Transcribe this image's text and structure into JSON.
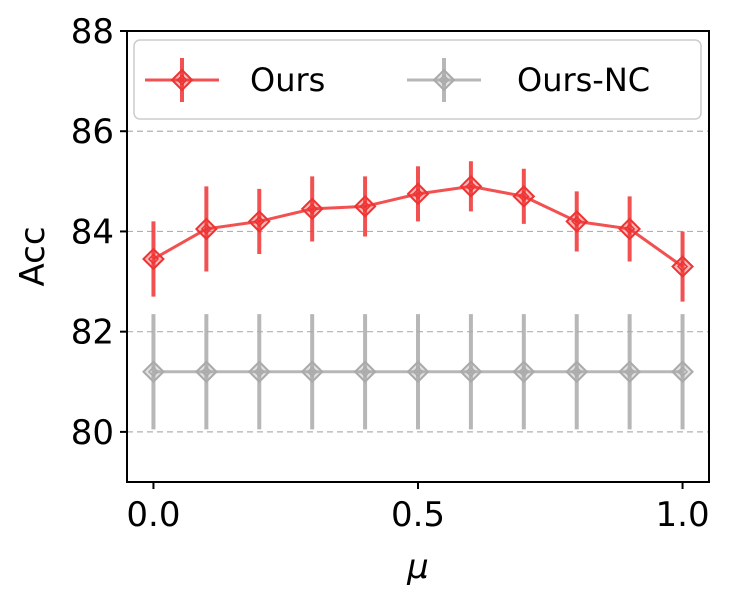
{
  "chart_data": {
    "type": "line",
    "title": "",
    "xlabel": "μ",
    "ylabel": "Acc",
    "xlim": [
      -0.05,
      1.05
    ],
    "ylim": [
      79.0,
      88.0
    ],
    "xticks": [
      0.0,
      0.5,
      1.0
    ],
    "xtick_labels": [
      "0.0",
      "0.5",
      "1.0"
    ],
    "yticks": [
      80,
      82,
      84,
      86,
      88
    ],
    "ytick_labels": [
      "80",
      "82",
      "84",
      "86",
      "88"
    ],
    "grid": "horizontal dashed",
    "legend_position": "top",
    "x": [
      0.0,
      0.1,
      0.2,
      0.3,
      0.4,
      0.5,
      0.6,
      0.7,
      0.8,
      0.9,
      1.0
    ],
    "series": [
      {
        "name": "Ours",
        "color": "#ee3333",
        "marker": "diamond",
        "values": [
          83.45,
          84.05,
          84.2,
          84.45,
          84.5,
          84.75,
          84.9,
          84.7,
          84.2,
          84.05,
          83.3
        ],
        "errors": [
          0.75,
          0.85,
          0.65,
          0.65,
          0.6,
          0.55,
          0.5,
          0.55,
          0.6,
          0.65,
          0.7
        ]
      },
      {
        "name": "Ours-NC",
        "color": "#aaaaaa",
        "marker": "diamond",
        "values": [
          81.2,
          81.2,
          81.2,
          81.2,
          81.2,
          81.2,
          81.2,
          81.2,
          81.2,
          81.2,
          81.2
        ],
        "errors": [
          1.15,
          1.15,
          1.15,
          1.15,
          1.15,
          1.15,
          1.15,
          1.15,
          1.15,
          1.15,
          1.15
        ]
      }
    ]
  }
}
